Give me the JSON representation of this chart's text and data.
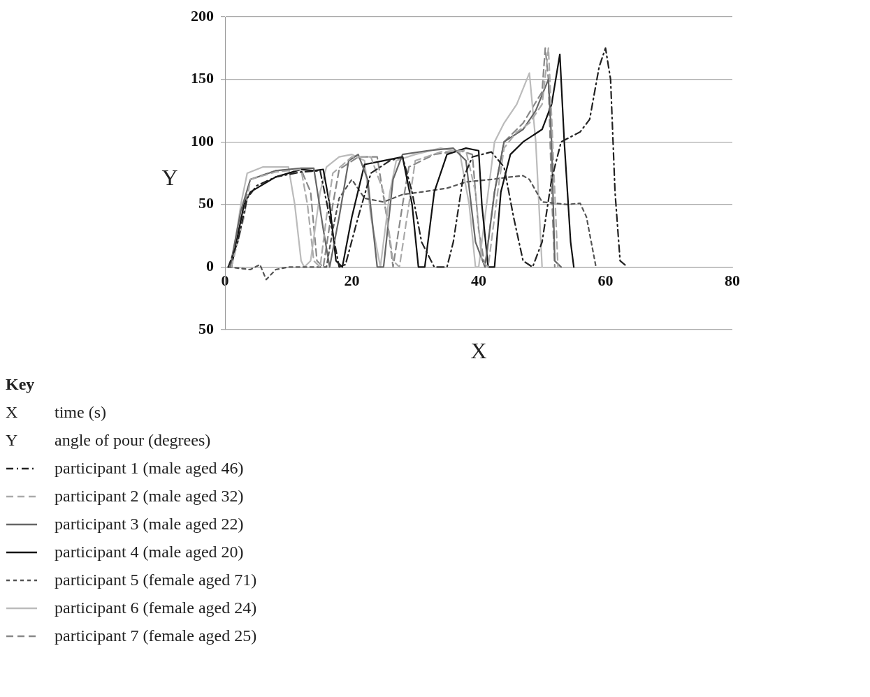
{
  "chart_data": {
    "type": "line",
    "xlabel": "X",
    "ylabel": "Y",
    "xlim": [
      0,
      80
    ],
    "xticks": [
      0,
      20,
      40,
      60,
      80
    ],
    "ylim": [
      -50,
      200
    ],
    "yticks": [
      {
        "value": -50,
        "label": "50"
      },
      0,
      50,
      100,
      150,
      200
    ],
    "grid": "y",
    "legend": "bottom",
    "marker": "none",
    "annotations": [
      "Key",
      "X",
      "time (s)",
      "Y",
      "angle of pour (degrees)"
    ],
    "series": [
      {
        "name": "participant 1 (male aged 46)",
        "color": "#222222",
        "line_style": "dashdot",
        "x": [
          0.5,
          2,
          3.5,
          5,
          8,
          12,
          15,
          16.5,
          18,
          19,
          21,
          23,
          26,
          28,
          29.5,
          31,
          33,
          35,
          36,
          37.5,
          39,
          42,
          44,
          45.5,
          47,
          48.5,
          50,
          51.5,
          53,
          56,
          57.5,
          59,
          60,
          60.8,
          61.5,
          62.3,
          63.5
        ],
        "values": [
          0,
          20,
          55,
          65,
          72,
          76,
          77,
          40,
          0,
          2,
          40,
          75,
          85,
          88,
          60,
          20,
          0,
          0,
          20,
          70,
          88,
          92,
          80,
          40,
          5,
          0,
          20,
          70,
          100,
          108,
          118,
          160,
          175,
          150,
          60,
          5,
          0
        ]
      },
      {
        "name": "participant 2 (male aged 32)",
        "color": "#aaaaaa",
        "line_style": "dashed",
        "x": [
          1,
          3,
          4,
          8,
          12,
          13,
          14,
          15,
          16,
          17,
          20,
          23,
          25,
          26.5,
          27.5,
          29,
          30,
          34,
          38,
          39.5,
          40.5,
          41.5,
          43,
          44,
          46,
          48,
          50,
          51,
          51.5,
          52.5
        ],
        "values": [
          0,
          40,
          70,
          76,
          78,
          50,
          5,
          0,
          40,
          75,
          88,
          88,
          60,
          5,
          0,
          50,
          85,
          92,
          93,
          60,
          5,
          0,
          60,
          95,
          108,
          115,
          130,
          175,
          120,
          0
        ]
      },
      {
        "name": "participant 3 (male aged 22)",
        "color": "#666666",
        "line_style": "solid",
        "x": [
          0.8,
          2.5,
          4,
          8,
          12,
          14,
          15.5,
          16.5,
          18,
          19.5,
          21,
          22.5,
          24,
          25,
          26.5,
          28,
          32,
          36,
          38,
          39.5,
          41,
          42.5,
          44,
          47,
          49,
          51,
          51.5,
          52,
          53
        ],
        "values": [
          0,
          45,
          70,
          77,
          79,
          79,
          30,
          0,
          40,
          85,
          90,
          70,
          0,
          0,
          70,
          90,
          93,
          95,
          85,
          20,
          0,
          60,
          100,
          110,
          125,
          150,
          100,
          5,
          0
        ]
      },
      {
        "name": "participant 4 (male aged 20)",
        "color": "#111111",
        "line_style": "solid",
        "x": [
          1,
          3,
          4,
          8,
          12,
          14,
          15.5,
          16.5,
          17.5,
          18.5,
          20,
          22,
          25,
          28,
          29.5,
          30.5,
          31.5,
          33,
          35,
          38,
          40,
          40.5,
          41.5,
          42.5,
          43.5,
          45,
          47,
          50,
          51.5,
          52.8,
          53.5,
          54.5,
          55
        ],
        "values": [
          0,
          50,
          60,
          72,
          78,
          77,
          78,
          50,
          5,
          0,
          40,
          82,
          85,
          88,
          50,
          0,
          0,
          60,
          90,
          95,
          93,
          50,
          0,
          0,
          60,
          90,
          100,
          110,
          130,
          170,
          100,
          20,
          0
        ]
      },
      {
        "name": "participant 5 (female aged 71)",
        "color": "#555555",
        "line_style": "dotted",
        "x": [
          0.5,
          4,
          5.5,
          6.5,
          8,
          10,
          16,
          17,
          18,
          20,
          22,
          25,
          28,
          31,
          35,
          38,
          42,
          45,
          47,
          48,
          50,
          54,
          56,
          57,
          58.5
        ],
        "values": [
          0,
          -2,
          2,
          -10,
          -2,
          0,
          0,
          30,
          55,
          70,
          55,
          52,
          58,
          60,
          63,
          68,
          70,
          72,
          73,
          70,
          52,
          50,
          51,
          40,
          0
        ]
      },
      {
        "name": "participant 6 (female aged 24)",
        "color": "#bbbbbb",
        "line_style": "solid",
        "x": [
          1,
          2.5,
          3.5,
          6,
          10,
          11,
          12,
          12.5,
          13.5,
          15,
          16,
          18,
          20,
          22,
          23,
          24.5,
          26,
          27,
          30,
          34,
          37,
          38.5,
          39.5,
          40,
          41.5,
          42.5,
          44,
          46,
          48,
          49,
          50
        ],
        "values": [
          0,
          50,
          75,
          80,
          80,
          50,
          5,
          0,
          5,
          60,
          80,
          88,
          90,
          85,
          40,
          0,
          60,
          85,
          90,
          95,
          92,
          50,
          0,
          0,
          60,
          100,
          115,
          130,
          155,
          100,
          0
        ]
      },
      {
        "name": "participant 7 (female aged 25)",
        "color": "#888888",
        "line_style": "dashed",
        "x": [
          1,
          3,
          4,
          8,
          12,
          13.5,
          14.5,
          15.5,
          17,
          18,
          21,
          24,
          25.5,
          26.5,
          28,
          29,
          33,
          37,
          39,
          40,
          41,
          42.5,
          44,
          47,
          50,
          50.5,
          51,
          51.5,
          52
        ],
        "values": [
          0,
          50,
          70,
          77,
          78,
          60,
          5,
          0,
          50,
          78,
          88,
          88,
          40,
          0,
          50,
          80,
          90,
          93,
          90,
          30,
          0,
          60,
          100,
          115,
          140,
          175,
          150,
          60,
          0
        ]
      }
    ]
  }
}
